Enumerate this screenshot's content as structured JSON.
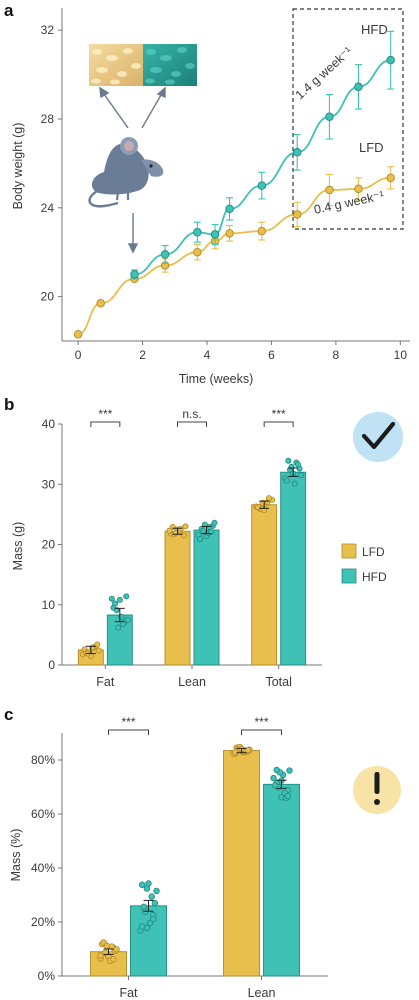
{
  "colors": {
    "lfd": "#e8be4c",
    "lfd_dark": "#b08a24",
    "hfd": "#3fc1b6",
    "hfd_dark": "#1f8a82",
    "axis": "#777777",
    "check_bg": "#bfe2f5",
    "warn_bg": "#f7e3a6"
  },
  "icons": {
    "check": "check-mark-icon",
    "warning": "exclamation-icon",
    "mouse": "mouse-illustration",
    "food": "food-pellets-illustration"
  },
  "panels": {
    "a": {
      "letter": "a",
      "hfd_label": "HFD",
      "lfd_label": "LFD",
      "hfd_rate": "1.4 g week⁻¹",
      "lfd_rate": "0.4 g week⁻¹"
    },
    "b": {
      "letter": "b"
    },
    "c": {
      "letter": "c"
    }
  },
  "chart_data": [
    {
      "panel": "a",
      "type": "line",
      "xlabel": "Time (weeks)",
      "ylabel": "Body weight (g)",
      "xlim": [
        -0.5,
        10.3
      ],
      "ylim": [
        18,
        33
      ],
      "xticks": [
        0,
        2,
        4,
        6,
        8,
        10
      ],
      "yticks": [
        20,
        24,
        28,
        32
      ],
      "series": [
        {
          "name": "LFD",
          "x": [
            0,
            0.7,
            1.75,
            2.7,
            3.7,
            4.25,
            4.7,
            5.7,
            6.8,
            7.8,
            8.7,
            9.7
          ],
          "y": [
            18.3,
            19.7,
            20.8,
            21.4,
            22.0,
            22.5,
            22.85,
            22.95,
            23.7,
            24.8,
            24.85,
            25.35
          ],
          "err": [
            0,
            0,
            0,
            0.3,
            0.35,
            0.35,
            0.35,
            0.4,
            0.55,
            0.7,
            0.5,
            0.5
          ]
        },
        {
          "name": "HFD",
          "x": [
            1.75,
            2.7,
            3.7,
            4.25,
            4.7,
            5.7,
            6.8,
            7.8,
            8.7,
            9.7
          ],
          "y": [
            21.0,
            21.9,
            22.9,
            22.8,
            23.95,
            25.0,
            26.5,
            28.1,
            29.45,
            30.65
          ],
          "err": [
            0.2,
            0.4,
            0.45,
            0.45,
            0.5,
            0.6,
            0.8,
            1.0,
            1.0,
            1.3
          ]
        }
      ],
      "annotation_x": 1.75
    },
    {
      "panel": "b",
      "type": "bar",
      "ylabel": "Mass (g)",
      "ylim": [
        0,
        40
      ],
      "yticks": [
        0,
        10,
        20,
        30,
        40
      ],
      "categories": [
        "Fat",
        "Lean",
        "Total"
      ],
      "significance": [
        "***",
        "n.s.",
        "***"
      ],
      "legend": [
        "LFD",
        "HFD"
      ],
      "series": [
        {
          "name": "LFD",
          "values": [
            2.5,
            22.2,
            26.6
          ],
          "err": [
            0.6,
            0.5,
            0.6
          ],
          "points": [
            [
              1.8,
              2.2,
              3.1,
              2.6,
              1.5,
              3.4,
              2.0,
              2.9,
              2.4,
              1.9
            ],
            [
              21.8,
              22.5,
              21.5,
              22.9,
              22.1,
              23.0,
              21.7,
              22.6,
              22.3,
              21.9
            ],
            [
              26.0,
              26.8,
              27.4,
              25.9,
              27.0,
              26.3,
              26.9,
              27.7,
              26.2,
              25.7
            ]
          ]
        },
        {
          "name": "HFD",
          "values": [
            8.3,
            22.4,
            32.0
          ],
          "err": [
            1.1,
            0.6,
            0.7
          ],
          "points": [
            [
              6.2,
              7.1,
              9.5,
              10.8,
              11.4,
              10.2,
              8.0,
              7.5,
              9.1,
              6.8,
              11.0
            ],
            [
              21.4,
              23.1,
              22.6,
              21.9,
              23.6,
              22.3,
              22.9,
              21.6,
              23.3,
              22.1,
              20.9
            ],
            [
              30.1,
              31.5,
              32.4,
              33.6,
              31.0,
              32.9,
              33.3,
              30.6,
              31.8,
              32.6,
              33.9
            ]
          ]
        }
      ]
    },
    {
      "panel": "c",
      "type": "bar",
      "ylabel": "Mass (%)",
      "ylim": [
        0,
        90
      ],
      "yticks": [
        0,
        20,
        40,
        60,
        80
      ],
      "ytick_labels": [
        "0%",
        "20%",
        "40%",
        "60%",
        "80%"
      ],
      "categories": [
        "Fat",
        "Lean"
      ],
      "significance": [
        "***",
        "***"
      ],
      "series": [
        {
          "name": "LFD",
          "values": [
            9.0,
            83.5
          ],
          "err": [
            1.0,
            0.8
          ],
          "points": [
            [
              6.5,
              8.1,
              10.5,
              11.8,
              7.2,
              9.3,
              12.4,
              5.6,
              9.9,
              8.6,
              10.9,
              7.6,
              11.2,
              6.2
            ],
            [
              82.5,
              84.0,
              83.2,
              84.6,
              82.9,
              83.8,
              84.3,
              83.0,
              82.4,
              84.8,
              83.5,
              82.8,
              84.1,
              83.6
            ]
          ]
        },
        {
          "name": "HFD",
          "values": [
            26.0,
            71.0
          ],
          "err": [
            2.0,
            1.5
          ],
          "points": [
            [
              17.8,
              22.5,
              33.8,
              34.3,
              27.0,
              25.6,
              19.6,
              31.5,
              23.8,
              29.4,
              16.9,
              32.4,
              21.1,
              18.3
            ],
            [
              66.2,
              68.8,
              71.6,
              74.5,
              76.1,
              69.9,
              67.8,
              73.3,
              75.4,
              65.9,
              70.6,
              72.4,
              66.6,
              76.3
            ]
          ]
        }
      ]
    }
  ]
}
